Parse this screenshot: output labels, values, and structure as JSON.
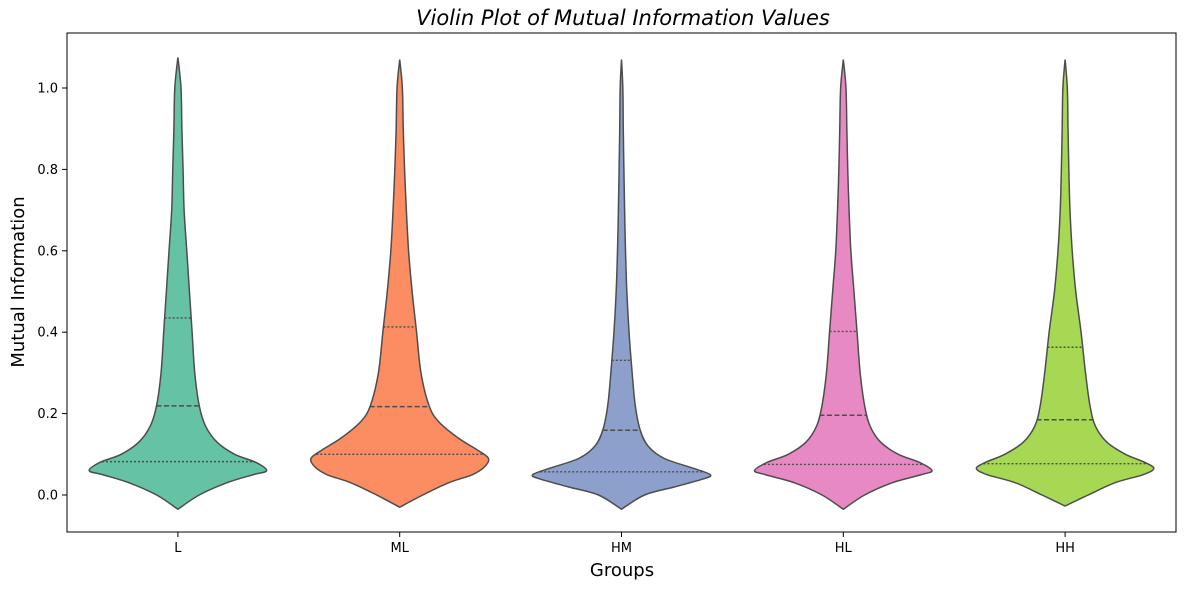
{
  "chart_data": {
    "type": "violin",
    "title": "Violin Plot of Mutual Information Values",
    "xlabel": "Groups",
    "ylabel": "Mutual Information",
    "ylim": [
      -0.09,
      1.13
    ],
    "yticks": [
      0.0,
      0.2,
      0.4,
      0.6,
      0.8,
      1.0
    ],
    "ytick_labels": [
      "0.0",
      "0.2",
      "0.4",
      "0.6",
      "0.8",
      "1.0"
    ],
    "grid": false,
    "categories": [
      "L",
      "ML",
      "HM",
      "HL",
      "HH"
    ],
    "series": [
      {
        "name": "L",
        "color": "#66c2a5",
        "range": [
          -0.035,
          1.075
        ],
        "quartiles": [
          0.082,
          0.219,
          0.435
        ],
        "profile": [
          [
            -0.035,
            0.0
          ],
          [
            0.0,
            0.24
          ],
          [
            0.03,
            0.55
          ],
          [
            0.05,
            0.85
          ],
          [
            0.06,
            1.0
          ],
          [
            0.08,
            0.88
          ],
          [
            0.1,
            0.64
          ],
          [
            0.13,
            0.44
          ],
          [
            0.17,
            0.31
          ],
          [
            0.22,
            0.24
          ],
          [
            0.3,
            0.19
          ],
          [
            0.4,
            0.16
          ],
          [
            0.5,
            0.13
          ],
          [
            0.6,
            0.1
          ],
          [
            0.7,
            0.07
          ],
          [
            0.8,
            0.058
          ],
          [
            0.9,
            0.045
          ],
          [
            1.0,
            0.035
          ],
          [
            1.075,
            0.0
          ]
        ]
      },
      {
        "name": "ML",
        "color": "#fc8d62",
        "range": [
          -0.03,
          1.07
        ],
        "quartiles": [
          0.1,
          0.217,
          0.413
        ],
        "profile": [
          [
            -0.03,
            0.0
          ],
          [
            0.0,
            0.26
          ],
          [
            0.03,
            0.55
          ],
          [
            0.05,
            0.82
          ],
          [
            0.07,
            0.96
          ],
          [
            0.09,
            1.0
          ],
          [
            0.11,
            0.88
          ],
          [
            0.14,
            0.66
          ],
          [
            0.18,
            0.44
          ],
          [
            0.22,
            0.33
          ],
          [
            0.3,
            0.24
          ],
          [
            0.4,
            0.19
          ],
          [
            0.5,
            0.14
          ],
          [
            0.6,
            0.1
          ],
          [
            0.7,
            0.075
          ],
          [
            0.8,
            0.055
          ],
          [
            0.9,
            0.04
          ],
          [
            1.0,
            0.03
          ],
          [
            1.07,
            0.0
          ]
        ]
      },
      {
        "name": "HM",
        "color": "#8da0cb",
        "range": [
          -0.035,
          1.07
        ],
        "quartiles": [
          0.057,
          0.159,
          0.331
        ],
        "profile": [
          [
            -0.035,
            0.0
          ],
          [
            0.0,
            0.26
          ],
          [
            0.02,
            0.6
          ],
          [
            0.04,
            0.93
          ],
          [
            0.05,
            1.0
          ],
          [
            0.065,
            0.82
          ],
          [
            0.09,
            0.48
          ],
          [
            0.12,
            0.3
          ],
          [
            0.16,
            0.21
          ],
          [
            0.22,
            0.155
          ],
          [
            0.3,
            0.12
          ],
          [
            0.4,
            0.085
          ],
          [
            0.5,
            0.06
          ],
          [
            0.6,
            0.045
          ],
          [
            0.7,
            0.035
          ],
          [
            0.8,
            0.027
          ],
          [
            0.9,
            0.02
          ],
          [
            1.0,
            0.015
          ],
          [
            1.07,
            0.0
          ]
        ]
      },
      {
        "name": "HL",
        "color": "#e78ac3",
        "range": [
          -0.035,
          1.07
        ],
        "quartiles": [
          0.075,
          0.196,
          0.402
        ],
        "profile": [
          [
            -0.035,
            0.0
          ],
          [
            0.0,
            0.24
          ],
          [
            0.03,
            0.55
          ],
          [
            0.05,
            0.88
          ],
          [
            0.06,
            1.0
          ],
          [
            0.08,
            0.86
          ],
          [
            0.1,
            0.62
          ],
          [
            0.13,
            0.42
          ],
          [
            0.17,
            0.3
          ],
          [
            0.22,
            0.24
          ],
          [
            0.3,
            0.19
          ],
          [
            0.4,
            0.155
          ],
          [
            0.5,
            0.12
          ],
          [
            0.6,
            0.085
          ],
          [
            0.7,
            0.065
          ],
          [
            0.8,
            0.05
          ],
          [
            0.9,
            0.04
          ],
          [
            1.0,
            0.03
          ],
          [
            1.07,
            0.0
          ]
        ]
      },
      {
        "name": "HH",
        "color": "#a6d854",
        "range": [
          -0.027,
          1.07
        ],
        "quartiles": [
          0.077,
          0.185,
          0.363
        ],
        "profile": [
          [
            -0.027,
            0.0
          ],
          [
            0.0,
            0.26
          ],
          [
            0.03,
            0.56
          ],
          [
            0.05,
            0.88
          ],
          [
            0.065,
            1.0
          ],
          [
            0.08,
            0.9
          ],
          [
            0.1,
            0.68
          ],
          [
            0.13,
            0.47
          ],
          [
            0.17,
            0.34
          ],
          [
            0.22,
            0.28
          ],
          [
            0.3,
            0.23
          ],
          [
            0.4,
            0.18
          ],
          [
            0.5,
            0.12
          ],
          [
            0.6,
            0.08
          ],
          [
            0.7,
            0.055
          ],
          [
            0.8,
            0.042
          ],
          [
            0.9,
            0.033
          ],
          [
            1.0,
            0.025
          ],
          [
            1.07,
            0.0
          ]
        ]
      }
    ]
  }
}
